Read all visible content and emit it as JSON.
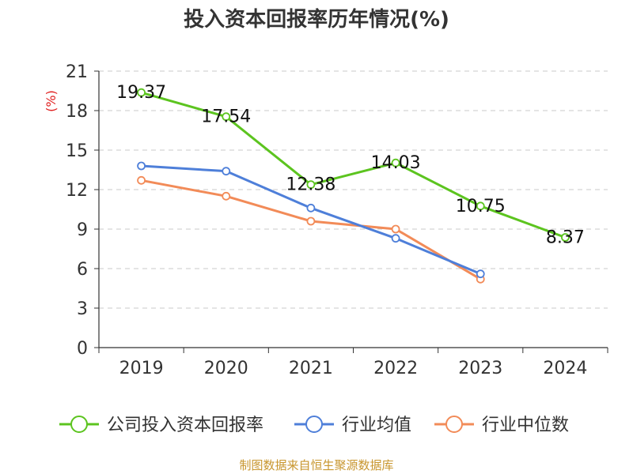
{
  "chart_data": {
    "type": "line",
    "title": "投入资本回报率历年情况(%)",
    "ylabel": "(%)",
    "categories": [
      "2019",
      "2020",
      "2021",
      "2022",
      "2023",
      "2024"
    ],
    "ylim": [
      0,
      21
    ],
    "yticks": [
      0,
      3,
      6,
      9,
      12,
      15,
      18,
      21
    ],
    "grid": true,
    "legend_position": "bottom",
    "series": [
      {
        "name": "公司投入资本回报率",
        "color": "#5cc41f",
        "values": [
          19.37,
          17.54,
          12.38,
          14.03,
          10.75,
          8.37
        ],
        "labels": [
          "19.37",
          "17.54",
          "12.38",
          "14.03",
          "10.75",
          "8.37"
        ]
      },
      {
        "name": "行业均值",
        "color": "#4e7fd9",
        "values": [
          13.8,
          13.4,
          10.6,
          8.3,
          5.6,
          null
        ]
      },
      {
        "name": "行业中位数",
        "color": "#f28b58",
        "values": [
          12.7,
          11.5,
          9.6,
          9.0,
          5.2,
          null
        ]
      }
    ],
    "source": "制图数据来自恒生聚源数据库"
  }
}
